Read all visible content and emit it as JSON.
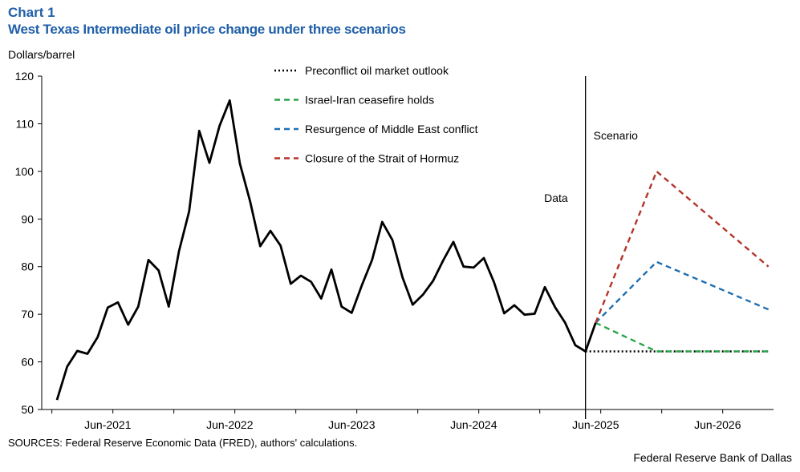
{
  "header": {
    "chart_number": "Chart 1",
    "title": "West Texas Intermediate oil price change under three scenarios"
  },
  "footer": {
    "sources": "SOURCES: Federal Reserve Economic Data (FRED), authors' calculations.",
    "credit": "Federal Reserve Bank of Dallas"
  },
  "chart_data": {
    "type": "line",
    "title": "West Texas Intermediate oil price change under three scenarios",
    "ylabel": "Dollars/barrel",
    "ylim": [
      50,
      120
    ],
    "yticks": [
      50,
      60,
      70,
      80,
      90,
      100,
      110,
      120
    ],
    "xlim": [
      "2020-12",
      "2026-11"
    ],
    "xtick_labels": [
      "Jun-2021",
      "Jun-2022",
      "Jun-2023",
      "Jun-2024",
      "Jun-2025",
      "Jun-2026"
    ],
    "divider_date": "2025-05",
    "region_labels": {
      "data": "Data",
      "scenario": "Scenario"
    },
    "series": [
      {
        "name": "WTI price",
        "style": "solid",
        "color": "#000000",
        "in_legend": false,
        "x": [
          "2021-01",
          "2021-02",
          "2021-03",
          "2021-04",
          "2021-05",
          "2021-06",
          "2021-07",
          "2021-08",
          "2021-09",
          "2021-10",
          "2021-11",
          "2021-12",
          "2022-01",
          "2022-02",
          "2022-03",
          "2022-04",
          "2022-05",
          "2022-06",
          "2022-07",
          "2022-08",
          "2022-09",
          "2022-10",
          "2022-11",
          "2022-12",
          "2023-01",
          "2023-02",
          "2023-03",
          "2023-04",
          "2023-05",
          "2023-06",
          "2023-07",
          "2023-08",
          "2023-09",
          "2023-10",
          "2023-11",
          "2023-12",
          "2024-01",
          "2024-02",
          "2024-03",
          "2024-04",
          "2024-05",
          "2024-06",
          "2024-07",
          "2024-08",
          "2024-09",
          "2024-10",
          "2024-11",
          "2024-12",
          "2025-01",
          "2025-02",
          "2025-03",
          "2025-04",
          "2025-05",
          "2025-06"
        ],
        "values": [
          52.0,
          59.0,
          62.3,
          61.7,
          65.2,
          71.4,
          72.5,
          67.8,
          71.6,
          81.4,
          79.2,
          71.6,
          83.2,
          91.6,
          108.5,
          101.8,
          109.6,
          114.9,
          101.6,
          93.7,
          84.3,
          87.5,
          84.4,
          76.4,
          78.1,
          76.8,
          73.3,
          79.4,
          71.6,
          70.3,
          76.1,
          81.4,
          89.4,
          85.6,
          77.7,
          72.0,
          74.1,
          77.0,
          81.3,
          85.2,
          80.0,
          79.8,
          81.8,
          76.7,
          70.2,
          71.9,
          69.9,
          70.1,
          75.7,
          71.5,
          68.2,
          63.5,
          62.2,
          68.2
        ]
      },
      {
        "name": "Preconflict oil market outlook",
        "style": "dotted",
        "color": "#000000",
        "in_legend": true,
        "x": [
          "2025-05",
          "2026-11"
        ],
        "values": [
          62.2,
          62.2
        ]
      },
      {
        "name": "Israel-Iran ceasefire holds",
        "style": "dashed",
        "color": "#2ca34a",
        "in_legend": true,
        "x": [
          "2025-06",
          "2025-12",
          "2026-11"
        ],
        "values": [
          68.2,
          62.2,
          62.2
        ]
      },
      {
        "name": "Resurgence of Middle East conflict",
        "style": "dashed",
        "color": "#1f6fb2",
        "in_legend": true,
        "x": [
          "2025-06",
          "2025-12",
          "2026-11"
        ],
        "values": [
          68.2,
          81.0,
          71.0
        ]
      },
      {
        "name": "Closure of the Strait of Hormuz",
        "style": "dashed",
        "color": "#b5342a",
        "in_legend": true,
        "x": [
          "2025-06",
          "2025-12",
          "2026-11"
        ],
        "values": [
          68.2,
          100.0,
          80.0
        ]
      }
    ]
  }
}
